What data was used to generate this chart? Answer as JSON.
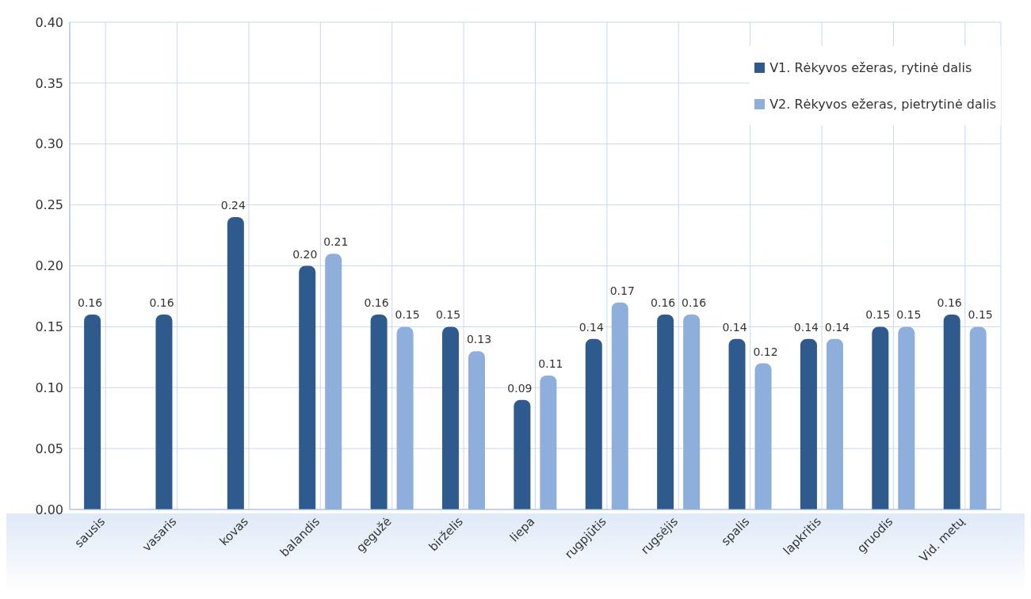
{
  "chart_data": {
    "type": "bar",
    "categories": [
      "sausis",
      "vasaris",
      "kovas",
      "balandis",
      "gegužė",
      "birželis",
      "liepa",
      "rugpjūtis",
      "rugsėjis",
      "spalis",
      "lapkritis",
      "gruodis",
      "Vid. metų"
    ],
    "series": [
      {
        "name": "V1. Rėkyvos ežeras, rytinė dalis",
        "color": "#2e5a8e",
        "values": [
          0.16,
          0.16,
          0.24,
          0.2,
          0.16,
          0.15,
          0.09,
          0.14,
          0.16,
          0.14,
          0.14,
          0.15,
          0.16
        ],
        "value_labels": [
          "0.16",
          "0.16",
          "0.24",
          "0.20",
          "0.16",
          "0.15",
          "0.09",
          "0.14",
          "0.16",
          "0.14",
          "0.14",
          "0.15",
          "0.16"
        ]
      },
      {
        "name": "V2. Rėkyvos ežeras, pietrytinė dalis",
        "color": "#8eaedb",
        "values": [
          null,
          null,
          null,
          0.21,
          0.15,
          0.13,
          0.11,
          0.17,
          0.16,
          0.12,
          0.14,
          0.15,
          0.15
        ],
        "value_labels": [
          null,
          null,
          null,
          "0.21",
          "0.15",
          "0.13",
          "0.11",
          "0.17",
          "0.16",
          "0.12",
          "0.14",
          "0.15",
          "0.15"
        ]
      }
    ],
    "ylim": [
      0,
      0.4
    ],
    "yticks": [
      {
        "value": 0,
        "label": "0.00"
      },
      {
        "value": 0.05,
        "label": "0.05"
      },
      {
        "value": 0.1,
        "label": "0.10"
      },
      {
        "value": 0.15,
        "label": "0.15"
      },
      {
        "value": 0.2,
        "label": "0.20"
      },
      {
        "value": 0.25,
        "label": "0.25"
      },
      {
        "value": 0.3,
        "label": "0.30"
      },
      {
        "value": 0.35,
        "label": "0.35"
      },
      {
        "value": 0.4,
        "label": "0.40"
      }
    ],
    "grid": true,
    "legend": "top right"
  }
}
